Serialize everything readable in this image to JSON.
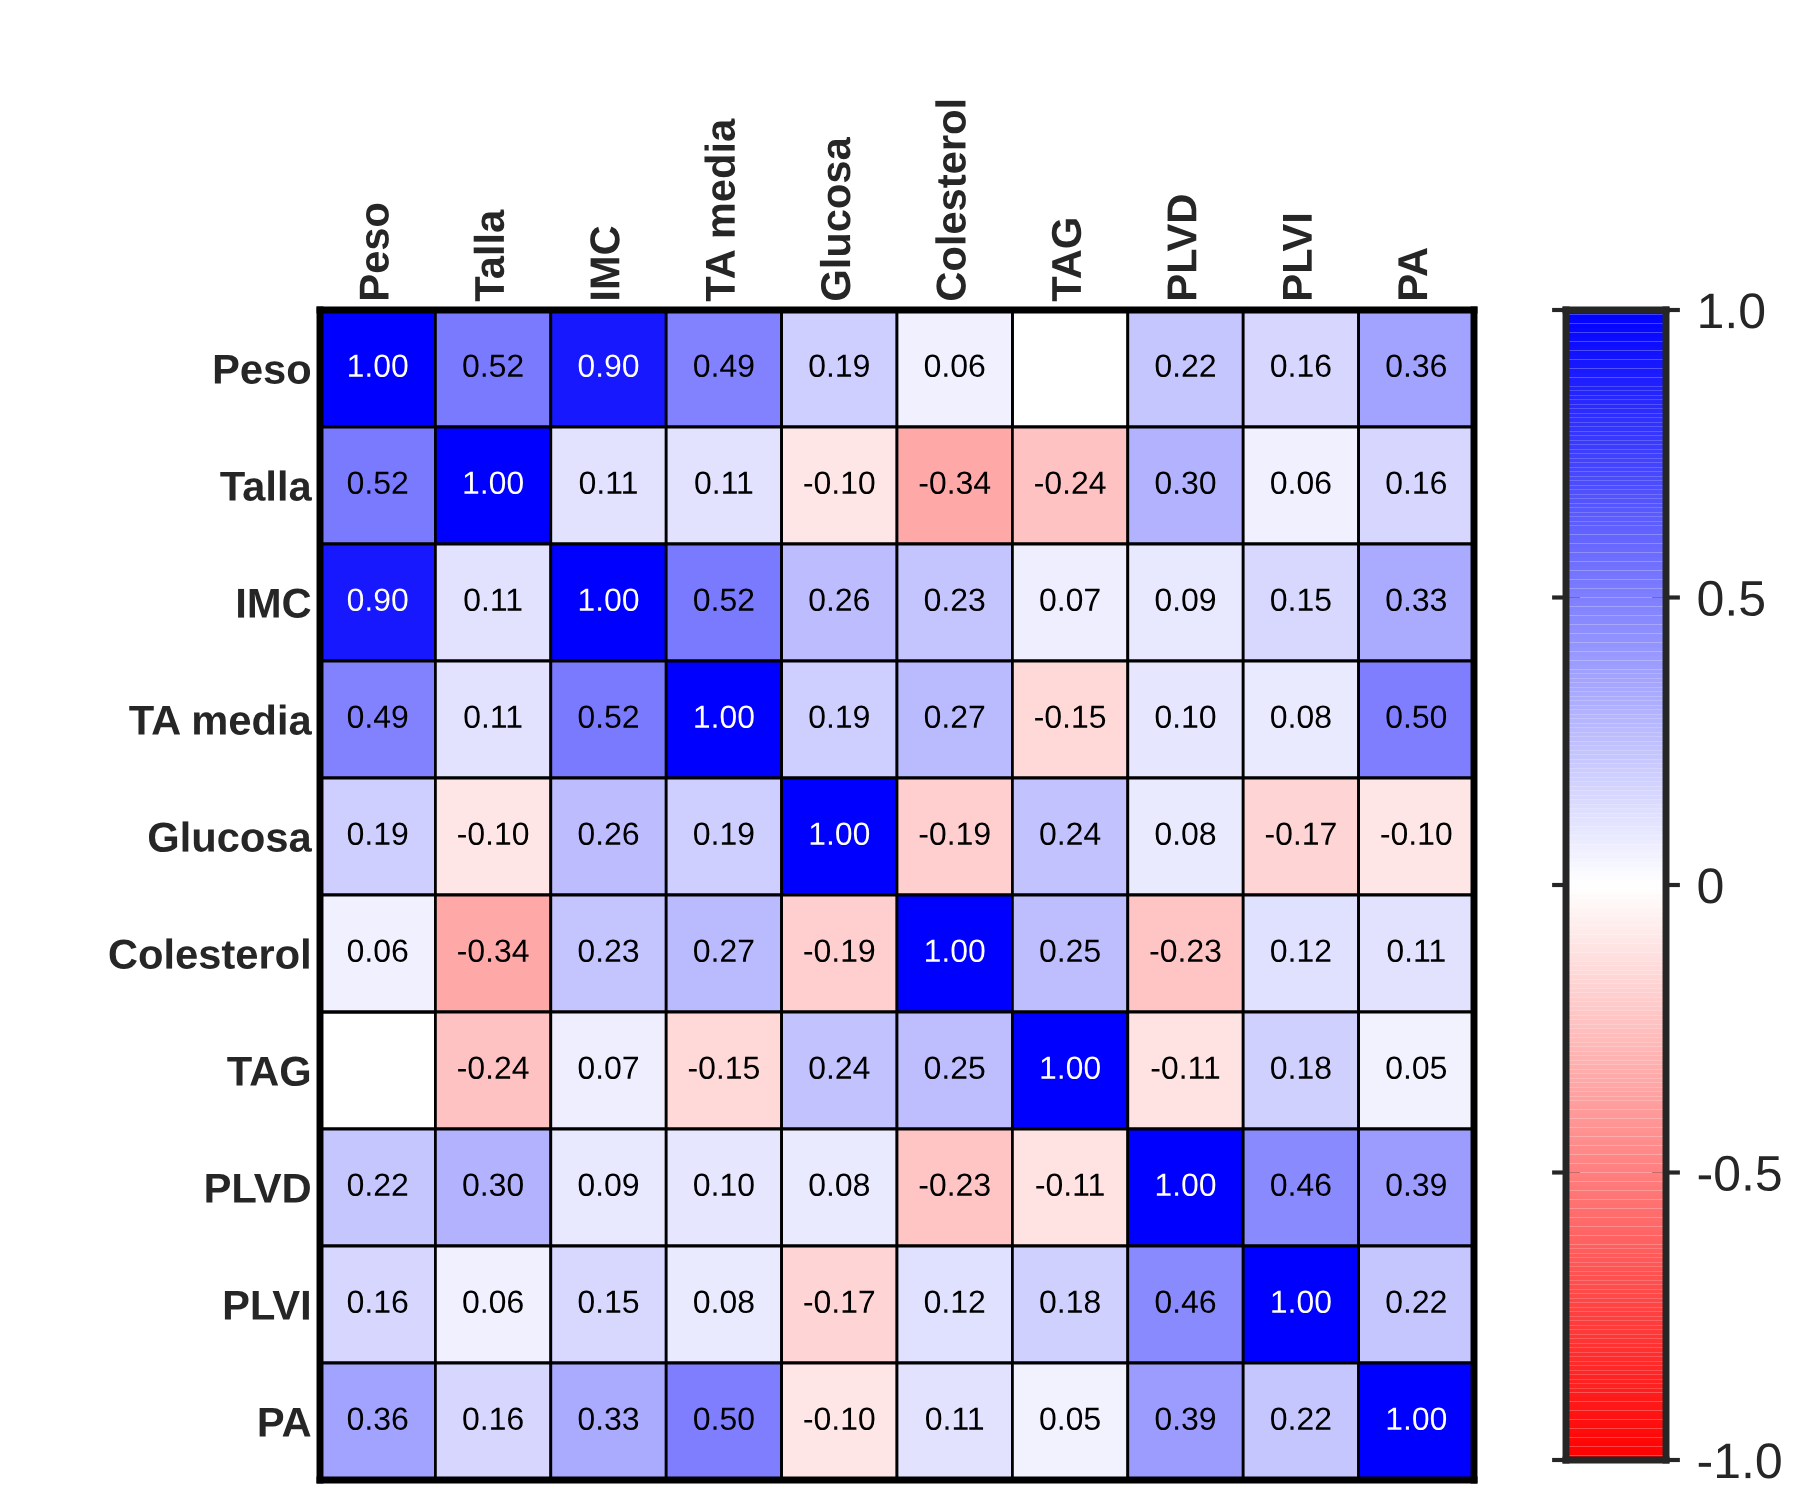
{
  "chart_data": {
    "type": "heatmap",
    "categories": [
      "Peso",
      "Talla",
      "IMC",
      "TA media",
      "Glucosa",
      "Colesterol",
      "TAG",
      "PLVD",
      "PLVI",
      "PA"
    ],
    "y_categories": [
      "Peso",
      "Talla",
      "IMC",
      "TA media",
      "Glucosa",
      "Colesterol",
      "TAG",
      "PLVD",
      "PLVI",
      "PA"
    ],
    "cells": [
      [
        1.0,
        0.52,
        0.9,
        0.49,
        0.19,
        0.06,
        null,
        0.22,
        0.16,
        0.36
      ],
      [
        0.52,
        1.0,
        0.11,
        0.11,
        -0.1,
        -0.34,
        -0.24,
        0.3,
        0.06,
        0.16
      ],
      [
        0.9,
        0.11,
        1.0,
        0.52,
        0.26,
        0.23,
        0.07,
        0.09,
        0.15,
        0.33
      ],
      [
        0.49,
        0.11,
        0.52,
        1.0,
        0.19,
        0.27,
        -0.15,
        0.1,
        0.08,
        0.5
      ],
      [
        0.19,
        -0.1,
        0.26,
        0.19,
        1.0,
        -0.19,
        0.24,
        0.08,
        -0.17,
        -0.1
      ],
      [
        0.06,
        -0.34,
        0.23,
        0.27,
        -0.19,
        1.0,
        0.25,
        -0.23,
        0.12,
        0.11
      ],
      [
        null,
        -0.24,
        0.07,
        -0.15,
        0.24,
        0.25,
        1.0,
        -0.11,
        0.18,
        0.05
      ],
      [
        0.22,
        0.3,
        0.09,
        0.1,
        0.08,
        -0.23,
        -0.11,
        1.0,
        0.46,
        0.39
      ],
      [
        0.16,
        0.06,
        0.15,
        0.08,
        -0.17,
        0.12,
        0.18,
        0.46,
        1.0,
        0.22
      ],
      [
        0.36,
        0.16,
        0.33,
        0.5,
        -0.1,
        0.11,
        0.05,
        0.39,
        0.22,
        1.0
      ]
    ],
    "cell_labels": [
      [
        "1.00",
        "0.52",
        "0.90",
        "0.49",
        "0.19",
        "0.06",
        null,
        "0.22",
        "0.16",
        "0.36"
      ],
      [
        "0.52",
        "1.00",
        "0.11",
        "0.11",
        "-0.10",
        "-0.34",
        "-0.24",
        "0.30",
        "0.06",
        "0.16"
      ],
      [
        "0.90",
        "0.11",
        "1.00",
        "0.52",
        "0.26",
        "0.23",
        "0.07",
        "0.09",
        "0.15",
        "0.33"
      ],
      [
        "0.49",
        "0.11",
        "0.52",
        "1.00",
        "0.19",
        "0.27",
        "-0.15",
        "0.10",
        "0.08",
        "0.50"
      ],
      [
        "0.19",
        "-0.10",
        "0.26",
        "0.19",
        "1.00",
        "-0.19",
        "0.24",
        "0.08",
        "-0.17",
        "-0.10"
      ],
      [
        "0.06",
        "-0.34",
        "0.23",
        "0.27",
        "-0.19",
        "1.00",
        "0.25",
        "-0.23",
        "0.12",
        "0.11"
      ],
      [
        null,
        "-0.24",
        "0.07",
        "-0.15",
        "0.24",
        "0.25",
        "1.00",
        "-0.11",
        "0.18",
        "0.05"
      ],
      [
        "0.22",
        "0.30",
        "0.09",
        "0.10",
        "0.08",
        "-0.23",
        "-0.11",
        "1.00",
        "0.46",
        "0.39"
      ],
      [
        "0.16",
        "0.06",
        "0.15",
        "0.08",
        "-0.17",
        "0.12",
        "0.18",
        "0.46",
        "1.00",
        "0.22"
      ],
      [
        "0.36",
        "0.16",
        "0.33",
        "0.50",
        "-0.10",
        "0.11",
        "0.05",
        "0.39",
        "0.22",
        "1.00"
      ]
    ],
    "clim": [
      -1.0,
      1.0
    ],
    "cticks": [
      {
        "value": 1.0,
        "label": "1.0"
      },
      {
        "value": 0.5,
        "label": "0.5"
      },
      {
        "value": 0,
        "label": "0"
      },
      {
        "value": -0.5,
        "label": "-0.5"
      },
      {
        "value": -1.0,
        "label": "-1.0"
      }
    ]
  }
}
